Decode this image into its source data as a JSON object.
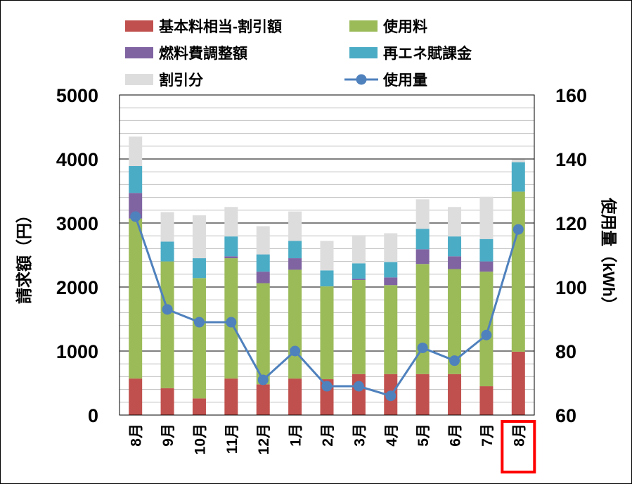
{
  "chart_data": {
    "type": "bar",
    "stacked": true,
    "categories": [
      "8月",
      "9月",
      "10月",
      "11月",
      "12月",
      "1月",
      "2月",
      "3月",
      "4月",
      "5月",
      "6月",
      "7月",
      "8月"
    ],
    "highlight_category_index": 12,
    "series": [
      {
        "name": "基本料相当-割引額",
        "color": "#C0504D",
        "values": [
          570,
          420,
          260,
          570,
          480,
          570,
          560,
          640,
          640,
          640,
          640,
          450,
          990
        ]
      },
      {
        "name": "使用料",
        "color": "#9BBB59",
        "values": [
          2500,
          1980,
          1880,
          1880,
          1580,
          1700,
          1450,
          1470,
          1390,
          1720,
          1640,
          1790,
          2500
        ]
      },
      {
        "name": "燃料費調整額",
        "color": "#8064A2",
        "values": [
          400,
          0,
          0,
          30,
          180,
          180,
          0,
          20,
          120,
          230,
          200,
          160,
          0
        ]
      },
      {
        "name": "再エネ賦課金",
        "color": "#4BACC6",
        "values": [
          420,
          310,
          310,
          310,
          270,
          270,
          250,
          240,
          240,
          320,
          310,
          350,
          460
        ]
      },
      {
        "name": "割引分",
        "color": "#DDDDDD",
        "values": [
          460,
          460,
          670,
          460,
          440,
          460,
          460,
          440,
          450,
          460,
          460,
          660,
          40
        ]
      }
    ],
    "line_series": {
      "name": "使用量",
      "color": "#4F81BD",
      "axis": "right",
      "values": [
        122,
        93,
        89,
        89,
        71,
        80,
        69,
        69,
        66,
        81,
        77,
        85,
        118
      ]
    },
    "ylabel": "請求額（円）",
    "ylabel_right": "使用量（kWh）",
    "ylim": [
      0,
      5000
    ],
    "ylim_right": [
      60,
      160
    ],
    "yticks": [
      "0",
      "1000",
      "2000",
      "3000",
      "4000",
      "5000"
    ],
    "yticks_right": [
      "60",
      "80",
      "100",
      "120",
      "140",
      "160"
    ],
    "grid": true,
    "legend_position": "top",
    "highlight_color": "#FF0000"
  }
}
